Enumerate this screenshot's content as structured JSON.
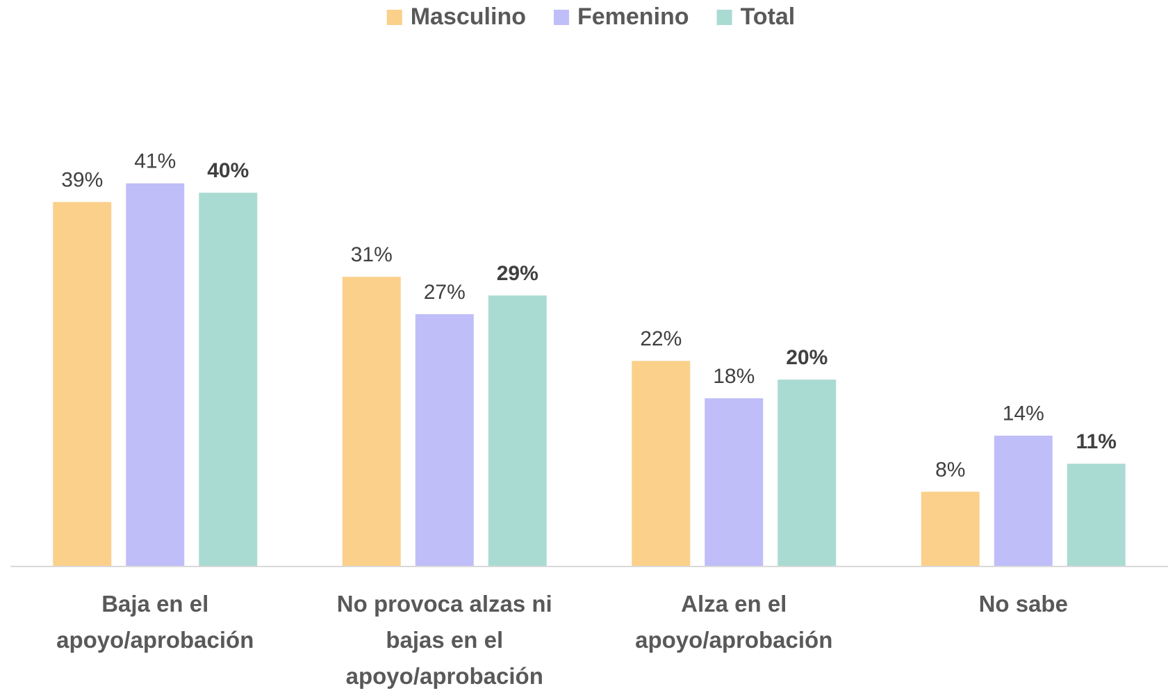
{
  "chart_data": {
    "type": "bar",
    "categories": [
      "Baja en el apoyo/aprobación",
      "No provoca alzas ni bajas en el apoyo/aprobación",
      "Alza en el apoyo/aprobación",
      "No sabe"
    ],
    "series": [
      {
        "name": "Masculino",
        "color": "#fbd08b",
        "values": [
          39,
          31,
          22,
          8
        ],
        "value_labels": [
          "39%",
          "31%",
          "22%",
          "8%"
        ]
      },
      {
        "name": "Femenino",
        "color": "#bfbef9",
        "values": [
          41,
          27,
          18,
          14
        ],
        "value_labels": [
          "41%",
          "27%",
          "18%",
          "14%"
        ]
      },
      {
        "name": "Total",
        "color": "#aadbd3",
        "values": [
          40,
          29,
          20,
          11
        ],
        "value_labels": [
          "40%",
          "29%",
          "20%",
          "11%"
        ],
        "label_bold": true
      }
    ],
    "ylim": [
      0,
      45
    ],
    "legend": "top"
  }
}
